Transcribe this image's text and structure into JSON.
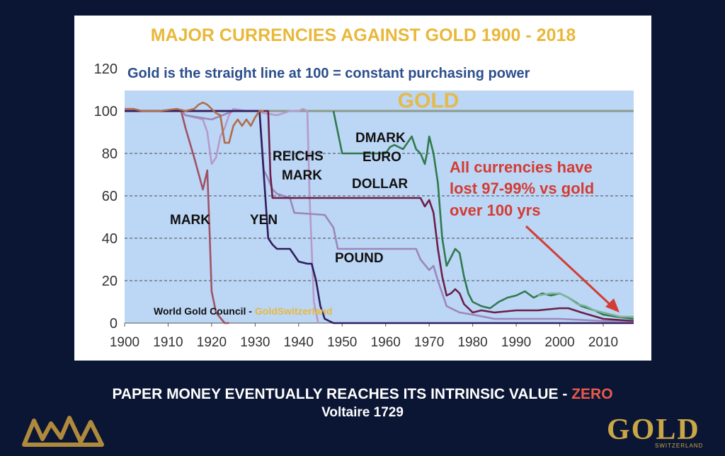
{
  "chart_data": {
    "type": "line",
    "title": "MAJOR CURRENCIES AGAINST GOLD 1900 - 2018",
    "subtitle": "Gold is the straight line at 100 = constant purchasing power",
    "xlim": [
      1900,
      2017
    ],
    "ylim": [
      0,
      120
    ],
    "x_ticks": [
      "1900",
      "1910",
      "1920",
      "1930",
      "1940",
      "1950",
      "1960",
      "1970",
      "1980",
      "1990",
      "2000",
      "2010"
    ],
    "y_ticks": [
      "0",
      "20",
      "40",
      "60",
      "80",
      "100",
      "120"
    ],
    "grid": "horizontal dashed",
    "series": [
      {
        "name": "GOLD",
        "color": "#8c9b8a",
        "points": [
          [
            1900,
            100
          ],
          [
            2017,
            100
          ]
        ]
      },
      {
        "name": "MARK",
        "color": "#a05266",
        "points": [
          [
            1900,
            100
          ],
          [
            1913,
            100
          ],
          [
            1914,
            92
          ],
          [
            1916,
            78
          ],
          [
            1918,
            63
          ],
          [
            1919,
            72
          ],
          [
            1919.5,
            45
          ],
          [
            1920,
            15
          ],
          [
            1921,
            5
          ],
          [
            1923,
            0
          ],
          [
            1924,
            0
          ]
        ]
      },
      {
        "name": "",
        "color": "#b69ac8",
        "points": [
          [
            1900,
            100
          ],
          [
            1913,
            100
          ],
          [
            1914,
            98
          ],
          [
            1918,
            96
          ],
          [
            1919,
            90
          ],
          [
            1920,
            75
          ],
          [
            1921,
            78
          ],
          [
            1922,
            88
          ],
          [
            1923,
            92
          ],
          [
            1924,
            98
          ],
          [
            1925,
            101
          ],
          [
            1928,
            100
          ],
          [
            1930,
            100
          ],
          [
            1932,
            99
          ],
          [
            1935,
            98
          ],
          [
            1938,
            100
          ],
          [
            1940,
            100
          ],
          [
            1941,
            101
          ],
          [
            1942,
            100
          ],
          [
            1942.5,
            60
          ],
          [
            1943.5,
            10
          ],
          [
            1944.5,
            0
          ]
        ]
      },
      {
        "name": "POUND",
        "color": "#9b87bb",
        "points": [
          [
            1900,
            100
          ],
          [
            1913,
            100
          ],
          [
            1914,
            98
          ],
          [
            1920,
            96
          ],
          [
            1925,
            100
          ],
          [
            1931,
            100
          ],
          [
            1932,
            72
          ],
          [
            1933,
            68
          ],
          [
            1934,
            63
          ],
          [
            1935,
            61
          ],
          [
            1938,
            59
          ],
          [
            1939,
            52
          ],
          [
            1946,
            51
          ],
          [
            1948,
            45
          ],
          [
            1949,
            35
          ],
          [
            1967,
            35
          ],
          [
            1968,
            30
          ],
          [
            1970,
            25
          ],
          [
            1971,
            27
          ],
          [
            1972,
            20
          ],
          [
            1974,
            8
          ],
          [
            1977,
            5
          ],
          [
            1980,
            4
          ],
          [
            1985,
            2
          ],
          [
            1990,
            2
          ],
          [
            2000,
            2
          ],
          [
            2010,
            1
          ],
          [
            2017,
            1
          ]
        ]
      },
      {
        "name": "DOLLAR",
        "color": "#6a1f4a",
        "points": [
          [
            1900,
            100
          ],
          [
            1932,
            100
          ],
          [
            1933,
            100
          ],
          [
            1933.5,
            70
          ],
          [
            1934,
            59
          ],
          [
            1950,
            59
          ],
          [
            1960,
            59
          ],
          [
            1968,
            59
          ],
          [
            1969,
            55
          ],
          [
            1970,
            58
          ],
          [
            1971,
            52
          ],
          [
            1972,
            35
          ],
          [
            1973,
            22
          ],
          [
            1974,
            13
          ],
          [
            1975,
            14
          ],
          [
            1976,
            16
          ],
          [
            1977,
            14
          ],
          [
            1978,
            9
          ],
          [
            1979,
            7
          ],
          [
            1980,
            5
          ],
          [
            1982,
            6
          ],
          [
            1985,
            5
          ],
          [
            1990,
            6
          ],
          [
            1995,
            6
          ],
          [
            2000,
            7
          ],
          [
            2002,
            7
          ],
          [
            2005,
            5
          ],
          [
            2010,
            2
          ],
          [
            2017,
            1
          ]
        ]
      },
      {
        "name": "YEN",
        "color": "#2f1d5e",
        "points": [
          [
            1900,
            100
          ],
          [
            1931,
            100
          ],
          [
            1932,
            70
          ],
          [
            1933,
            40
          ],
          [
            1934,
            37
          ],
          [
            1935,
            35
          ],
          [
            1938,
            35
          ],
          [
            1939,
            32
          ],
          [
            1940,
            29
          ],
          [
            1942,
            28
          ],
          [
            1943,
            28
          ],
          [
            1944,
            20
          ],
          [
            1945,
            8
          ],
          [
            1946,
            2
          ],
          [
            1947,
            1
          ],
          [
            1948,
            0
          ],
          [
            1960,
            0
          ],
          [
            2017,
            0
          ]
        ]
      },
      {
        "name": "DMARK EURO",
        "color": "#2f7a4e",
        "points": [
          [
            1948,
            100
          ],
          [
            1950,
            80
          ],
          [
            1955,
            80
          ],
          [
            1960,
            80
          ],
          [
            1961,
            83
          ],
          [
            1962,
            84
          ],
          [
            1964,
            82
          ],
          [
            1966,
            88
          ],
          [
            1967,
            82
          ],
          [
            1968,
            80
          ],
          [
            1969,
            75
          ],
          [
            1969.5,
            80
          ],
          [
            1970,
            88
          ],
          [
            1971,
            80
          ],
          [
            1972,
            66
          ],
          [
            1973,
            40
          ],
          [
            1974,
            27
          ],
          [
            1975,
            31
          ],
          [
            1976,
            35
          ],
          [
            1977,
            33
          ],
          [
            1978,
            22
          ],
          [
            1979,
            14
          ],
          [
            1980,
            10
          ],
          [
            1982,
            8
          ],
          [
            1984,
            7
          ],
          [
            1986,
            10
          ],
          [
            1988,
            12
          ],
          [
            1990,
            13
          ],
          [
            1992,
            15
          ],
          [
            1994,
            12
          ],
          [
            1996,
            14
          ],
          [
            1998,
            13
          ],
          [
            2000,
            14
          ],
          [
            2002,
            12
          ],
          [
            2005,
            8
          ],
          [
            2008,
            6
          ],
          [
            2010,
            4
          ],
          [
            2013,
            3
          ],
          [
            2017,
            2
          ]
        ]
      },
      {
        "name": "",
        "color": "#7fb59b",
        "points": [
          [
            1995,
            13
          ],
          [
            1998,
            14
          ],
          [
            2000,
            14
          ],
          [
            2002,
            12
          ],
          [
            2004,
            9
          ],
          [
            2006,
            8
          ],
          [
            2008,
            6
          ],
          [
            2010,
            5
          ],
          [
            2012,
            4
          ],
          [
            2014,
            3
          ],
          [
            2017,
            3
          ]
        ]
      },
      {
        "name": "",
        "color": "#b06d4b",
        "points": [
          [
            1900,
            101
          ],
          [
            1902,
            101
          ],
          [
            1904,
            100
          ],
          [
            1908,
            100
          ],
          [
            1912,
            101
          ],
          [
            1914,
            100
          ],
          [
            1916,
            101
          ],
          [
            1917,
            103
          ],
          [
            1918,
            104
          ],
          [
            1919,
            103
          ],
          [
            1920,
            101
          ],
          [
            1921,
            99
          ],
          [
            1922,
            98
          ],
          [
            1923,
            85
          ],
          [
            1924,
            85
          ],
          [
            1925,
            93
          ],
          [
            1926,
            96
          ],
          [
            1927,
            93
          ],
          [
            1928,
            96
          ],
          [
            1929,
            93
          ],
          [
            1930,
            97
          ],
          [
            1931,
            100
          ],
          [
            1932,
            100
          ]
        ]
      }
    ],
    "series_labels": [
      "GOLD",
      "MARK",
      "YEN",
      "REICHS",
      "MARK",
      "POUND",
      "DMARK",
      "EURO",
      "DOLLAR"
    ],
    "annotation": [
      "All currencies have",
      "lost 97-99% vs gold",
      "over 100 yrs"
    ],
    "source": "World Gold Council - ",
    "source_highlight": "GoldSwitzerland"
  },
  "caption": {
    "main": "PAPER MONEY EVENTUALLY REACHES ITS INTRINSIC VALUE - ",
    "highlight": "ZERO",
    "attribution": "Voltaire 1729"
  },
  "logos": {
    "left": "MAM",
    "right_main": "GOLD",
    "right_sub": "SWITZERLAND"
  },
  "colors": {
    "background": "#0b1634",
    "plot_area": "#bcd6f5",
    "title": "#e9b83a",
    "subtitle": "#2d4f8c",
    "annotation": "#d33c33",
    "gold_accent": "#c9a646"
  }
}
